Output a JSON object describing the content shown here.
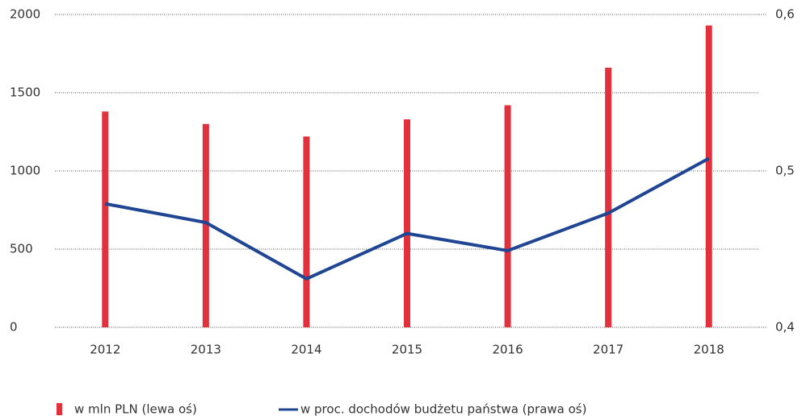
{
  "chart_data": {
    "type": "bar_line",
    "categories": [
      "2012",
      "2013",
      "2014",
      "2015",
      "2016",
      "2017",
      "2018"
    ],
    "series": [
      {
        "name": "w mln PLN (lewa oś)",
        "type": "bar",
        "color": "#e0313c",
        "values": [
          1380,
          1300,
          1220,
          1330,
          1420,
          1660,
          1930
        ]
      },
      {
        "name": "w proc. dochodów budżetu państwa (prawa oś)",
        "type": "line",
        "axis": "y2",
        "color": "#1f4593",
        "values": [
          0.479,
          0.467,
          0.431,
          0.46,
          0.449,
          0.473,
          0.508
        ]
      }
    ],
    "ylim": [
      0,
      2000
    ],
    "yticks": [
      0,
      500,
      1000,
      1500,
      2000
    ],
    "y2lim": [
      0.4,
      0.6
    ],
    "y2ticks": [
      {
        "value": 0.4,
        "label": "0,4"
      },
      {
        "value": 0.5,
        "label": "0,5"
      },
      {
        "value": 0.6,
        "label": "0,6"
      }
    ],
    "grid": true,
    "legend": "bottom"
  }
}
